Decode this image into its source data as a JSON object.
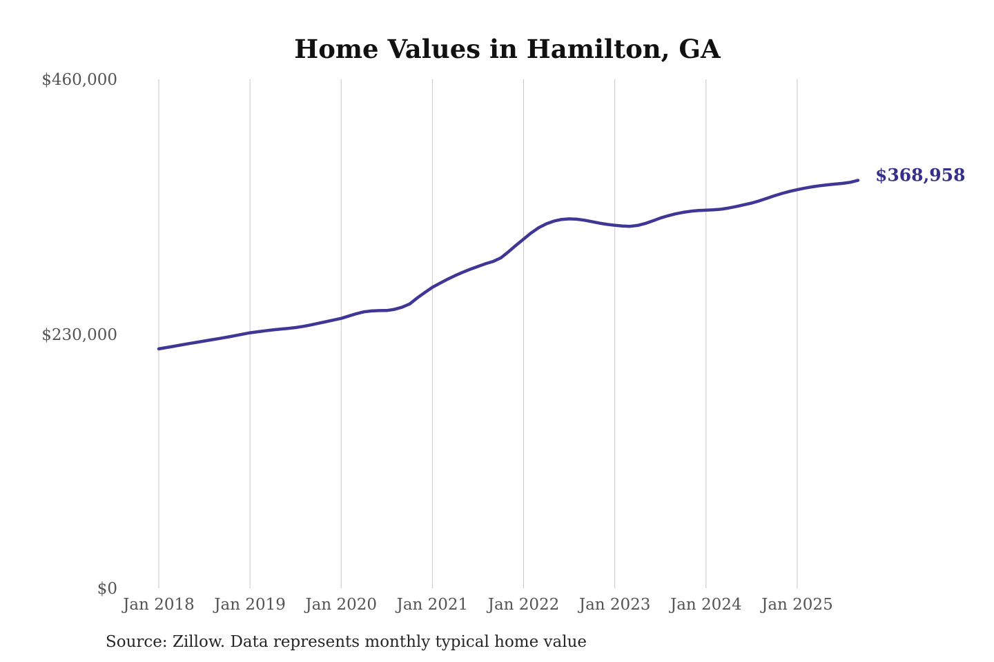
{
  "title": "Home Values in Hamilton, GA",
  "source_note": "Source: Zillow. Data represents monthly typical home value",
  "end_label": "$368,958",
  "colors": {
    "line": "#3f3795",
    "end_label": "#343089",
    "gridline": "#c6c6c6",
    "tick_text": "#545454",
    "title_text": "#111111",
    "source_text": "#262626",
    "background": "#ffffff"
  },
  "chart_data": {
    "type": "line",
    "title": "Home Values in Hamilton, GA",
    "xlabel": "",
    "ylabel": "",
    "x_start": "2018-01",
    "x_end": "2025-09",
    "frequency": "monthly",
    "grid": "vertical-only",
    "legend": "none",
    "ylim": [
      0,
      460000
    ],
    "y_ticks": [
      0,
      230000,
      460000
    ],
    "y_tick_labels": [
      "$0",
      "$230,000",
      "$460,000"
    ],
    "x_tick_labels": [
      "Jan 2018",
      "Jan 2019",
      "Jan 2020",
      "Jan 2021",
      "Jan 2022",
      "Jan 2023",
      "Jan 2024",
      "Jan 2025"
    ],
    "x_tick_month_indices": [
      0,
      12,
      24,
      36,
      48,
      60,
      72,
      84
    ],
    "last_value": 368958,
    "last_value_label": "$368,958",
    "series": [
      {
        "name": "Monthly typical home value",
        "values": [
          217000,
          218200,
          219400,
          220600,
          221800,
          222900,
          224100,
          225300,
          226400,
          227600,
          228900,
          230200,
          231500,
          232400,
          233300,
          234100,
          234800,
          235500,
          236200,
          237300,
          238600,
          240100,
          241500,
          243000,
          244500,
          246600,
          248700,
          250400,
          251200,
          251500,
          251600,
          252600,
          254500,
          257500,
          262900,
          267800,
          272500,
          276200,
          279800,
          283100,
          286100,
          288800,
          291300,
          293800,
          295800,
          299000,
          304500,
          310400,
          316000,
          321500,
          326300,
          329800,
          332200,
          333700,
          334200,
          333900,
          333000,
          331700,
          330300,
          329200,
          328400,
          327700,
          327500,
          328300,
          330000,
          332400,
          334900,
          337000,
          338700,
          340100,
          341100,
          341700,
          342000,
          342300,
          342900,
          344000,
          345400,
          346900,
          348400,
          350400,
          352700,
          355000,
          357100,
          358900,
          360500,
          361900,
          363100,
          364100,
          364900,
          365600,
          366200,
          367200,
          368958
        ]
      }
    ]
  }
}
